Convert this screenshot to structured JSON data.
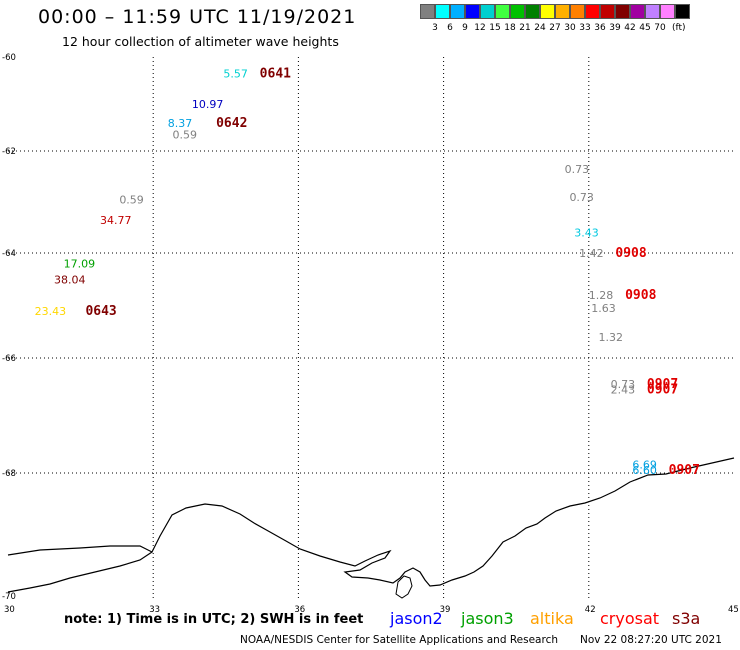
{
  "header": {
    "title": "00:00 – 11:59 UTC 11/19/2021",
    "subtitle": "12 hour collection of altimeter wave heights"
  },
  "colorbar": {
    "colors": [
      "#808080",
      "#00ffff",
      "#00b0ff",
      "#0000ff",
      "#00d0d0",
      "#40ff40",
      "#00c000",
      "#008000",
      "#ffff00",
      "#ffb000",
      "#ff8000",
      "#ff0000",
      "#c00000",
      "#800000",
      "#a000a0",
      "#c080ff",
      "#ff80ff",
      "#000000"
    ],
    "labels": [
      "3",
      "6",
      "9",
      "12",
      "15",
      "18",
      "21",
      "24",
      "27",
      "30",
      "33",
      "36",
      "39",
      "42",
      "45",
      "70"
    ],
    "unit": "(ft)"
  },
  "axes": {
    "x_ticks": [
      "30",
      "33",
      "36",
      "39",
      "42",
      "45"
    ],
    "y_ticks": [
      "-60",
      "-62",
      "-64",
      "-66",
      "-68",
      "-70"
    ]
  },
  "observations": [
    {
      "text": "5.57",
      "color": "#00d0d0",
      "lon": 34.45,
      "lat": -60.35,
      "kind": "swh"
    },
    {
      "text": "0641",
      "color": "#800000",
      "lon": 35.2,
      "lat": -60.35,
      "kind": "time"
    },
    {
      "text": "10.97",
      "color": "#0000c0",
      "lon": 33.8,
      "lat": -61.0,
      "kind": "swh"
    },
    {
      "text": "8.37",
      "color": "#00a0e0",
      "lon": 33.3,
      "lat": -61.4,
      "kind": "swh"
    },
    {
      "text": "0642",
      "color": "#800000",
      "lon": 34.3,
      "lat": -61.4,
      "kind": "time"
    },
    {
      "text": "0.59",
      "color": "#808080",
      "lon": 33.4,
      "lat": -61.65,
      "kind": "swh"
    },
    {
      "text": "0.59",
      "color": "#808080",
      "lon": 32.3,
      "lat": -62.95,
      "kind": "swh"
    },
    {
      "text": "34.77",
      "color": "#c00000",
      "lon": 31.9,
      "lat": -63.35,
      "kind": "swh"
    },
    {
      "text": "17.09",
      "color": "#00a000",
      "lon": 31.15,
      "lat": -64.2,
      "kind": "swh"
    },
    {
      "text": "38.04",
      "color": "#800000",
      "lon": 30.95,
      "lat": -64.5,
      "kind": "swh"
    },
    {
      "text": "23.43",
      "color": "#ffd700",
      "lon": 30.55,
      "lat": -65.1,
      "kind": "swh"
    },
    {
      "text": "0643",
      "color": "#800000",
      "lon": 31.6,
      "lat": -65.1,
      "kind": "time"
    },
    {
      "text": "0.73",
      "color": "#808080",
      "lon": 41.5,
      "lat": -62.35,
      "kind": "swh"
    },
    {
      "text": "0.73",
      "color": "#808080",
      "lon": 41.6,
      "lat": -62.9,
      "kind": "swh"
    },
    {
      "text": "3.43",
      "color": "#00c8e0",
      "lon": 41.7,
      "lat": -63.6,
      "kind": "swh"
    },
    {
      "text": "1.42",
      "color": "#808080",
      "lon": 41.8,
      "lat": -64.0,
      "kind": "swh"
    },
    {
      "text": "0908",
      "color": "#e00000",
      "lon": 42.55,
      "lat": -64.0,
      "kind": "time"
    },
    {
      "text": "1.28",
      "color": "#808080",
      "lon": 42.0,
      "lat": -64.8,
      "kind": "swh"
    },
    {
      "text": "0908",
      "color": "#e00000",
      "lon": 42.75,
      "lat": -64.8,
      "kind": "time"
    },
    {
      "text": "1.63",
      "color": "#808080",
      "lon": 42.05,
      "lat": -65.05,
      "kind": "swh"
    },
    {
      "text": "1.32",
      "color": "#808080",
      "lon": 42.2,
      "lat": -65.6,
      "kind": "swh"
    },
    {
      "text": "0.73",
      "color": "#808080",
      "lon": 42.45,
      "lat": -66.45,
      "kind": "swh"
    },
    {
      "text": "2.43",
      "color": "#808080",
      "lon": 42.45,
      "lat": -66.55,
      "kind": "swh"
    },
    {
      "text": "0907",
      "color": "#e00000",
      "lon": 43.2,
      "lat": -66.45,
      "kind": "time"
    },
    {
      "text": "0907",
      "color": "#e00000",
      "lon": 43.2,
      "lat": -66.55,
      "kind": "time"
    },
    {
      "text": "6.69",
      "color": "#00a0e0",
      "lon": 42.9,
      "lat": -67.85,
      "kind": "swh"
    },
    {
      "text": "6.60",
      "color": "#00a0e0",
      "lon": 42.9,
      "lat": -67.95,
      "kind": "swh"
    },
    {
      "text": "0907",
      "color": "#e00000",
      "lon": 43.65,
      "lat": -67.95,
      "kind": "time"
    }
  ],
  "footer": {
    "note": "note:  1) Time is in UTC;  2) SWH is in feet",
    "legend": [
      {
        "name": "jason2",
        "color": "#0000ff"
      },
      {
        "name": "jason3",
        "color": "#00a000"
      },
      {
        "name": "altika",
        "color": "#ffa000"
      },
      {
        "name": "cryosat",
        "color": "#ff0000"
      },
      {
        "name": "s3a",
        "color": "#800000"
      }
    ],
    "credit": "NOAA/NESDIS Center for Satellite Applications and Research",
    "generated": "Nov 22 08:27:20 UTC 2021"
  }
}
